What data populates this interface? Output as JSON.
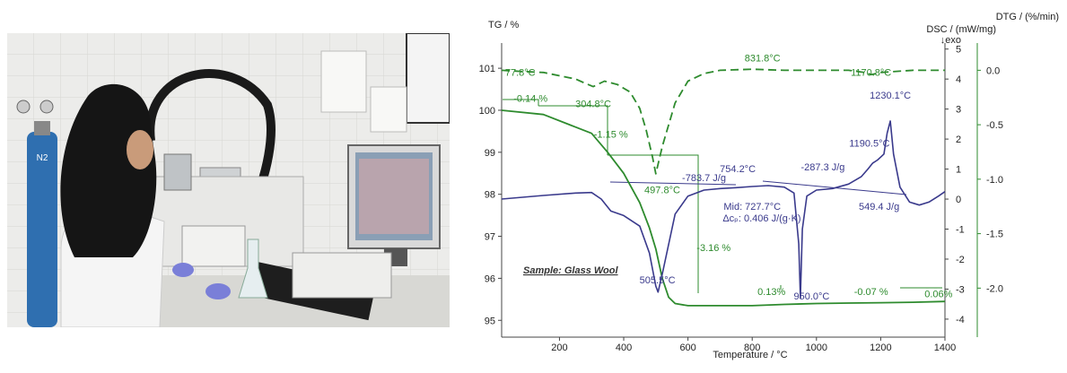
{
  "photo": {
    "cylinder_label": "N2"
  },
  "chart_data": {
    "type": "line",
    "sample_label": "Sample: Glass Wool",
    "xlabel": "Temperature / °C",
    "x_ticks": [
      200,
      400,
      600,
      800,
      1000,
      1200,
      1400
    ],
    "xlim": [
      20,
      1400
    ],
    "axes": {
      "tg": {
        "title": "TG / %",
        "ylim": [
          94.6,
          101.6
        ],
        "ticks": [
          95,
          96,
          97,
          98,
          99,
          100,
          101
        ]
      },
      "dsc": {
        "title": "DSC / (mW/mg)",
        "exo": "↓exo",
        "ylim": [
          -4.6,
          5.2
        ],
        "ticks": [
          5,
          4,
          3,
          2,
          1,
          0,
          -1,
          -2,
          -3,
          -4
        ]
      },
      "dtg": {
        "title": "DTG / (%/min)",
        "ylim": [
          -2.45,
          0.25
        ],
        "ticks": [
          "0.0",
          "-0.5",
          "-1.0",
          "-1.5",
          "-2.0"
        ],
        "tick_values": [
          0.0,
          -0.5,
          -1.0,
          -1.5,
          -2.0
        ]
      }
    },
    "colors": {
      "tg": "#2e8b2e",
      "dtg": "#2e8b2e",
      "dsc": "#3a3a8c",
      "axis": "#444444"
    },
    "series": [
      {
        "key": "tg",
        "name": "TG",
        "style": "solid",
        "axis": "tg",
        "x": [
          20,
          150,
          250,
          300,
          350,
          400,
          450,
          480,
          500,
          520,
          540,
          560,
          600,
          700,
          800,
          900,
          1000,
          1100,
          1200,
          1300,
          1400
        ],
        "y": [
          100.0,
          99.9,
          99.6,
          99.45,
          99.0,
          98.5,
          97.8,
          97.2,
          96.7,
          96.0,
          95.55,
          95.4,
          95.35,
          95.35,
          95.35,
          95.38,
          95.4,
          95.41,
          95.42,
          95.43,
          95.45
        ]
      },
      {
        "key": "dtg",
        "name": "DTG",
        "style": "dashed",
        "axis": "dtg",
        "x": [
          20,
          78,
          150,
          250,
          280,
          305,
          340,
          380,
          420,
          450,
          470,
          490,
          500,
          520,
          560,
          600,
          650,
          700,
          800,
          900,
          1000,
          1100,
          1150,
          1171,
          1200,
          1300,
          1400
        ],
        "y": [
          0.0,
          -0.01,
          -0.02,
          -0.08,
          -0.12,
          -0.15,
          -0.1,
          -0.13,
          -0.2,
          -0.35,
          -0.55,
          -0.8,
          -0.95,
          -0.7,
          -0.3,
          -0.1,
          -0.03,
          0.0,
          0.01,
          0.0,
          0.0,
          0.0,
          -0.02,
          -0.04,
          -0.02,
          0.0,
          0.0
        ]
      },
      {
        "key": "dsc",
        "name": "DSC",
        "style": "solid",
        "axis": "dsc",
        "x": [
          20,
          150,
          250,
          300,
          330,
          360,
          400,
          450,
          480,
          500,
          507,
          520,
          560,
          600,
          650,
          700,
          750,
          800,
          850,
          900,
          930,
          945,
          950,
          956,
          970,
          1000,
          1050,
          1100,
          1140,
          1160,
          1175,
          1190,
          1200,
          1210,
          1220,
          1230,
          1240,
          1260,
          1290,
          1320,
          1350,
          1380,
          1400
        ],
        "y": [
          0.0,
          0.12,
          0.2,
          0.22,
          0.0,
          -0.4,
          -0.55,
          -0.9,
          -1.8,
          -2.9,
          -3.1,
          -2.5,
          -0.5,
          0.1,
          0.3,
          0.35,
          0.38,
          0.42,
          0.45,
          0.4,
          0.2,
          -1.5,
          -3.3,
          -1.0,
          0.1,
          0.3,
          0.35,
          0.5,
          0.75,
          1.0,
          1.2,
          1.3,
          1.4,
          1.5,
          2.2,
          2.6,
          1.5,
          0.4,
          -0.1,
          -0.2,
          -0.1,
          0.1,
          0.25
        ]
      }
    ],
    "annotations": [
      {
        "text": "77.8°C",
        "x": 78,
        "axis": "dtg",
        "y": -0.05,
        "color": "#2e8b2e"
      },
      {
        "text": "304.8°C",
        "x": 305,
        "axis": "dtg",
        "y": -0.34,
        "color": "#2e8b2e"
      },
      {
        "text": "497.8°C",
        "x": 520,
        "axis": "dtg",
        "y": -1.13,
        "color": "#2e8b2e"
      },
      {
        "text": "831.8°C",
        "x": 832,
        "axis": "dtg",
        "y": 0.08,
        "color": "#2e8b2e"
      },
      {
        "text": "1170.8°C",
        "x": 1170,
        "axis": "dtg",
        "y": -0.05,
        "color": "#2e8b2e"
      },
      {
        "text": "-0.14 %",
        "x": 110,
        "axis": "tg",
        "y": 100.2,
        "color": "#2e8b2e"
      },
      {
        "text": "-1.15 %",
        "x": 360,
        "axis": "tg",
        "y": 99.35,
        "color": "#2e8b2e"
      },
      {
        "text": "-3.16 %",
        "x": 680,
        "axis": "tg",
        "y": 96.65,
        "color": "#2e8b2e"
      },
      {
        "text": "0.13%",
        "x": 860,
        "axis": "tg",
        "y": 95.6,
        "color": "#2e8b2e"
      },
      {
        "text": "-0.07 %",
        "x": 1170,
        "axis": "tg",
        "y": 95.6,
        "color": "#2e8b2e"
      },
      {
        "text": "0.06%",
        "x": 1380,
        "axis": "tg",
        "y": 95.55,
        "color": "#2e8b2e"
      },
      {
        "text": "-783.7 J/g",
        "x": 650,
        "axis": "dsc",
        "y": 0.6,
        "color": "#3a3a8c"
      },
      {
        "text": "754.2°C",
        "x": 755,
        "axis": "dsc",
        "y": 0.9,
        "color": "#3a3a8c"
      },
      {
        "text": "-287.3 J/g",
        "x": 1020,
        "axis": "dsc",
        "y": 0.95,
        "color": "#3a3a8c"
      },
      {
        "text": "549.4 J/g",
        "x": 1195,
        "axis": "dsc",
        "y": -0.35,
        "color": "#3a3a8c"
      },
      {
        "text": "1190.5°C",
        "x": 1165,
        "axis": "dsc",
        "y": 1.75,
        "color": "#3a3a8c"
      },
      {
        "text": "1230.1°C",
        "x": 1230,
        "axis": "dsc",
        "y": 3.35,
        "color": "#3a3a8c"
      },
      {
        "text": "505.5°C",
        "x": 505,
        "axis": "dsc",
        "y": -2.8,
        "color": "#3a3a8c"
      },
      {
        "text": "950.0°C",
        "x": 985,
        "axis": "dsc",
        "y": -3.35,
        "color": "#3a3a8c"
      },
      {
        "text": "Mid: 727.7°C",
        "x": 800,
        "axis": "dsc",
        "y": -0.35,
        "color": "#3a3a8c"
      },
      {
        "text": "Δcₚ: 0.406 J/(g·K)",
        "x": 830,
        "axis": "dsc",
        "y": -0.75,
        "color": "#3a3a8c"
      }
    ]
  }
}
